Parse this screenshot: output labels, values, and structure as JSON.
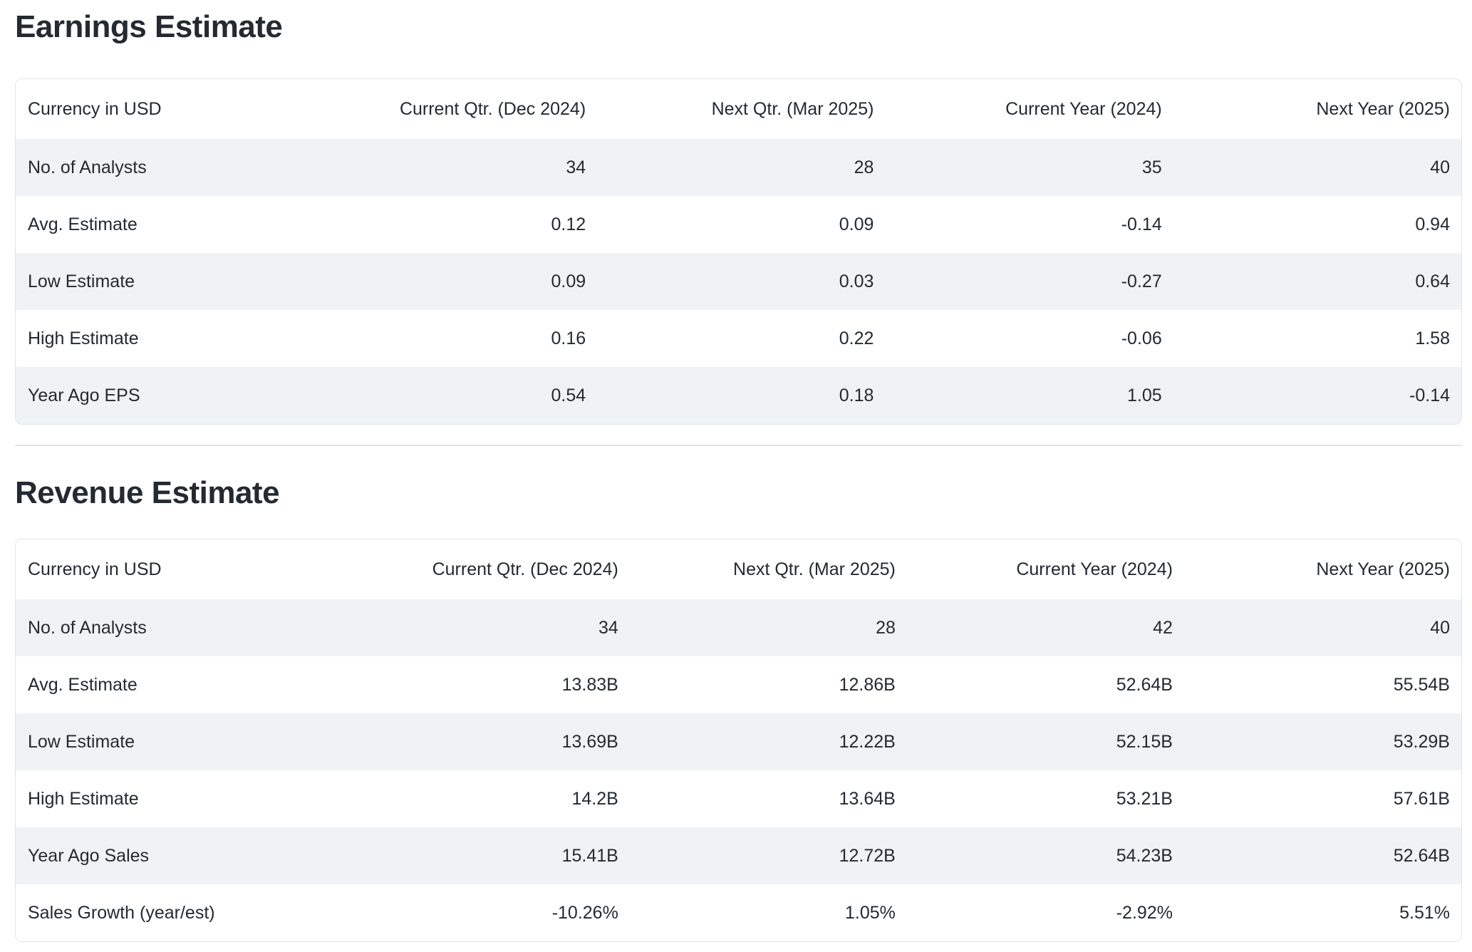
{
  "page": {
    "background": "#ffffff",
    "text_color": "#232a31",
    "stripe_color": "#f0f3f5",
    "card_border_color": "#e0e4e9",
    "divider_color": "#dfe4e8"
  },
  "sections": [
    {
      "title": "Earnings Estimate",
      "table": {
        "columns": [
          "Currency in USD",
          "Current Qtr. (Dec 2024)",
          "Next Qtr. (Mar 2025)",
          "Current Year (2024)",
          "Next Year (2025)"
        ],
        "rows": [
          [
            "No. of Analysts",
            "34",
            "28",
            "35",
            "40"
          ],
          [
            "Avg. Estimate",
            "0.12",
            "0.09",
            "-0.14",
            "0.94"
          ],
          [
            "Low Estimate",
            "0.09",
            "0.03",
            "-0.27",
            "0.64"
          ],
          [
            "High Estimate",
            "0.16",
            "0.22",
            "-0.06",
            "1.58"
          ],
          [
            "Year Ago EPS",
            "0.54",
            "0.18",
            "1.05",
            "-0.14"
          ]
        ]
      }
    },
    {
      "title": "Revenue Estimate",
      "table": {
        "columns": [
          "Currency in USD",
          "Current Qtr. (Dec 2024)",
          "Next Qtr. (Mar 2025)",
          "Current Year (2024)",
          "Next Year (2025)"
        ],
        "rows": [
          [
            "No. of Analysts",
            "34",
            "28",
            "42",
            "40"
          ],
          [
            "Avg. Estimate",
            "13.83B",
            "12.86B",
            "52.64B",
            "55.54B"
          ],
          [
            "Low Estimate",
            "13.69B",
            "12.22B",
            "52.15B",
            "53.29B"
          ],
          [
            "High Estimate",
            "14.2B",
            "13.64B",
            "53.21B",
            "57.61B"
          ],
          [
            "Year Ago Sales",
            "15.41B",
            "12.72B",
            "54.23B",
            "52.64B"
          ],
          [
            "Sales Growth (year/est)",
            "-10.26%",
            "1.05%",
            "-2.92%",
            "5.51%"
          ]
        ]
      }
    }
  ]
}
